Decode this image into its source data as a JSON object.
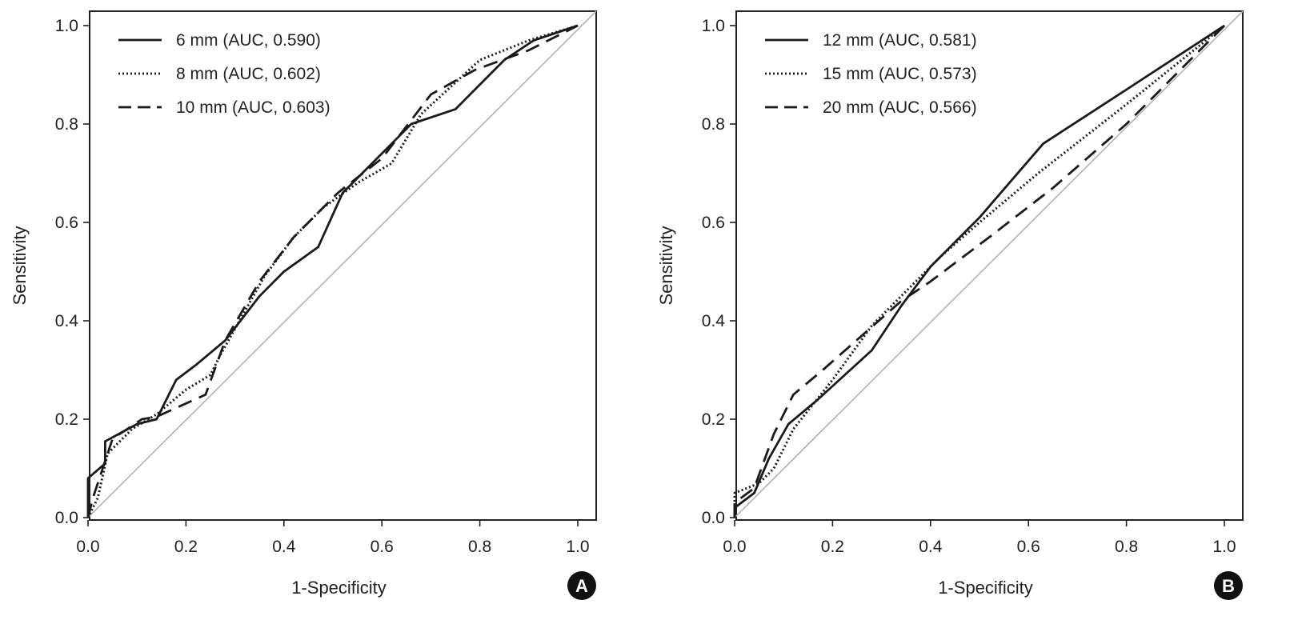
{
  "chart_data": [
    {
      "type": "line",
      "panel_label": "A",
      "xlabel": "1-Specificity",
      "ylabel": "Sensitivity",
      "xlim": [
        0,
        1
      ],
      "ylim": [
        0,
        1
      ],
      "xticks": [
        "0.0",
        "0.2",
        "0.4",
        "0.6",
        "0.8",
        "1.0"
      ],
      "yticks": [
        "0.0",
        "0.2",
        "0.4",
        "0.6",
        "0.8",
        "1.0"
      ],
      "legend_position": "top-left",
      "reference_line": {
        "x": [
          0,
          1
        ],
        "y": [
          0,
          1
        ],
        "color": "#b3b3b3"
      },
      "series": [
        {
          "name": "6 mm (AUC, 0.590)",
          "style": "solid",
          "x": [
            0,
            0,
            0.035,
            0.035,
            0.1,
            0.14,
            0.18,
            0.22,
            0.28,
            0.35,
            0.4,
            0.47,
            0.52,
            0.66,
            0.75,
            0.85,
            0.91,
            1.0
          ],
          "y": [
            0,
            0.08,
            0.11,
            0.155,
            0.19,
            0.2,
            0.28,
            0.31,
            0.36,
            0.45,
            0.5,
            0.55,
            0.66,
            0.8,
            0.83,
            0.93,
            0.97,
            1.0
          ]
        },
        {
          "name": "8 mm (AUC, 0.602)",
          "style": "dotted",
          "x": [
            0,
            0.02,
            0.04,
            0.09,
            0.14,
            0.2,
            0.25,
            0.27,
            0.36,
            0.42,
            0.48,
            0.55,
            0.62,
            0.68,
            0.8,
            0.9,
            1.0
          ],
          "y": [
            0,
            0.04,
            0.13,
            0.18,
            0.21,
            0.26,
            0.29,
            0.33,
            0.49,
            0.57,
            0.63,
            0.68,
            0.72,
            0.82,
            0.93,
            0.97,
            1.0
          ]
        },
        {
          "name": "10 mm (AUC, 0.603)",
          "style": "dashed",
          "x": [
            0,
            0.01,
            0.05,
            0.11,
            0.14,
            0.24,
            0.28,
            0.35,
            0.42,
            0.51,
            0.6,
            0.7,
            0.79,
            0.9,
            1.0
          ],
          "y": [
            0,
            0.04,
            0.16,
            0.2,
            0.205,
            0.25,
            0.36,
            0.48,
            0.57,
            0.66,
            0.73,
            0.86,
            0.91,
            0.95,
            1.0
          ]
        }
      ]
    },
    {
      "type": "line",
      "panel_label": "B",
      "xlabel": "1-Specificity",
      "ylabel": "Sensitivity",
      "xlim": [
        0,
        1
      ],
      "ylim": [
        0,
        1
      ],
      "xticks": [
        "0.0",
        "0.2",
        "0.4",
        "0.6",
        "0.8",
        "1.0"
      ],
      "yticks": [
        "0.0",
        "0.2",
        "0.4",
        "0.6",
        "0.8",
        "1.0"
      ],
      "legend_position": "top-left",
      "reference_line": {
        "x": [
          0,
          1
        ],
        "y": [
          0,
          1
        ],
        "color": "#b3b3b3"
      },
      "series": [
        {
          "name": "12 mm (AUC, 0.581)",
          "style": "solid",
          "x": [
            0,
            0,
            0.04,
            0.07,
            0.11,
            0.17,
            0.28,
            0.34,
            0.4,
            0.5,
            0.63,
            0.8,
            1.0
          ],
          "y": [
            0,
            0.02,
            0.05,
            0.12,
            0.19,
            0.24,
            0.34,
            0.43,
            0.51,
            0.61,
            0.76,
            0.87,
            1.0
          ]
        },
        {
          "name": "15 mm (AUC, 0.573)",
          "style": "dotted",
          "x": [
            0,
            0,
            0.05,
            0.08,
            0.12,
            0.2,
            0.28,
            0.35,
            0.42,
            0.5,
            0.62,
            0.8,
            1.0
          ],
          "y": [
            0,
            0.05,
            0.07,
            0.1,
            0.18,
            0.28,
            0.39,
            0.46,
            0.53,
            0.6,
            0.7,
            0.84,
            1.0
          ]
        },
        {
          "name": "20 mm (AUC, 0.566)",
          "style": "dashed",
          "x": [
            0,
            0,
            0.04,
            0.08,
            0.12,
            0.18,
            0.26,
            0.34,
            0.4,
            0.52,
            0.65,
            0.8,
            1.0
          ],
          "y": [
            0,
            0.03,
            0.06,
            0.17,
            0.25,
            0.3,
            0.37,
            0.44,
            0.48,
            0.57,
            0.67,
            0.8,
            1.0
          ]
        }
      ]
    }
  ]
}
